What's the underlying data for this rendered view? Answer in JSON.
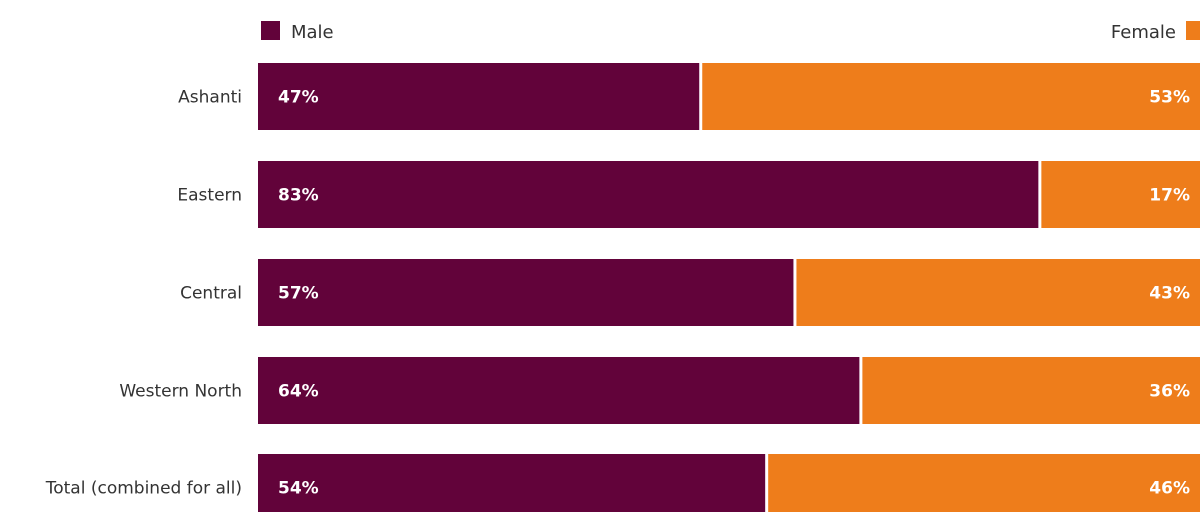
{
  "chart_data": {
    "type": "bar",
    "orientation": "horizontal",
    "stacked": true,
    "percent_stacked": true,
    "categories": [
      "Ashanti",
      "Eastern",
      "Central",
      "Western North",
      "Total (combined for all)"
    ],
    "series": [
      {
        "name": "Male",
        "color": "#62033a",
        "values": [
          47,
          83,
          57,
          64,
          54
        ],
        "labels": [
          "47%",
          "83%",
          "57%",
          "64%",
          "54%"
        ]
      },
      {
        "name": "Female",
        "color": "#ee7d1b",
        "values": [
          53,
          17,
          43,
          36,
          46
        ],
        "labels": [
          "53%",
          "17%",
          "43%",
          "36%",
          "46%"
        ]
      }
    ],
    "xlim": [
      0,
      100
    ],
    "legend": {
      "male_position": "top-left",
      "female_position": "top-right"
    },
    "grid": false
  }
}
